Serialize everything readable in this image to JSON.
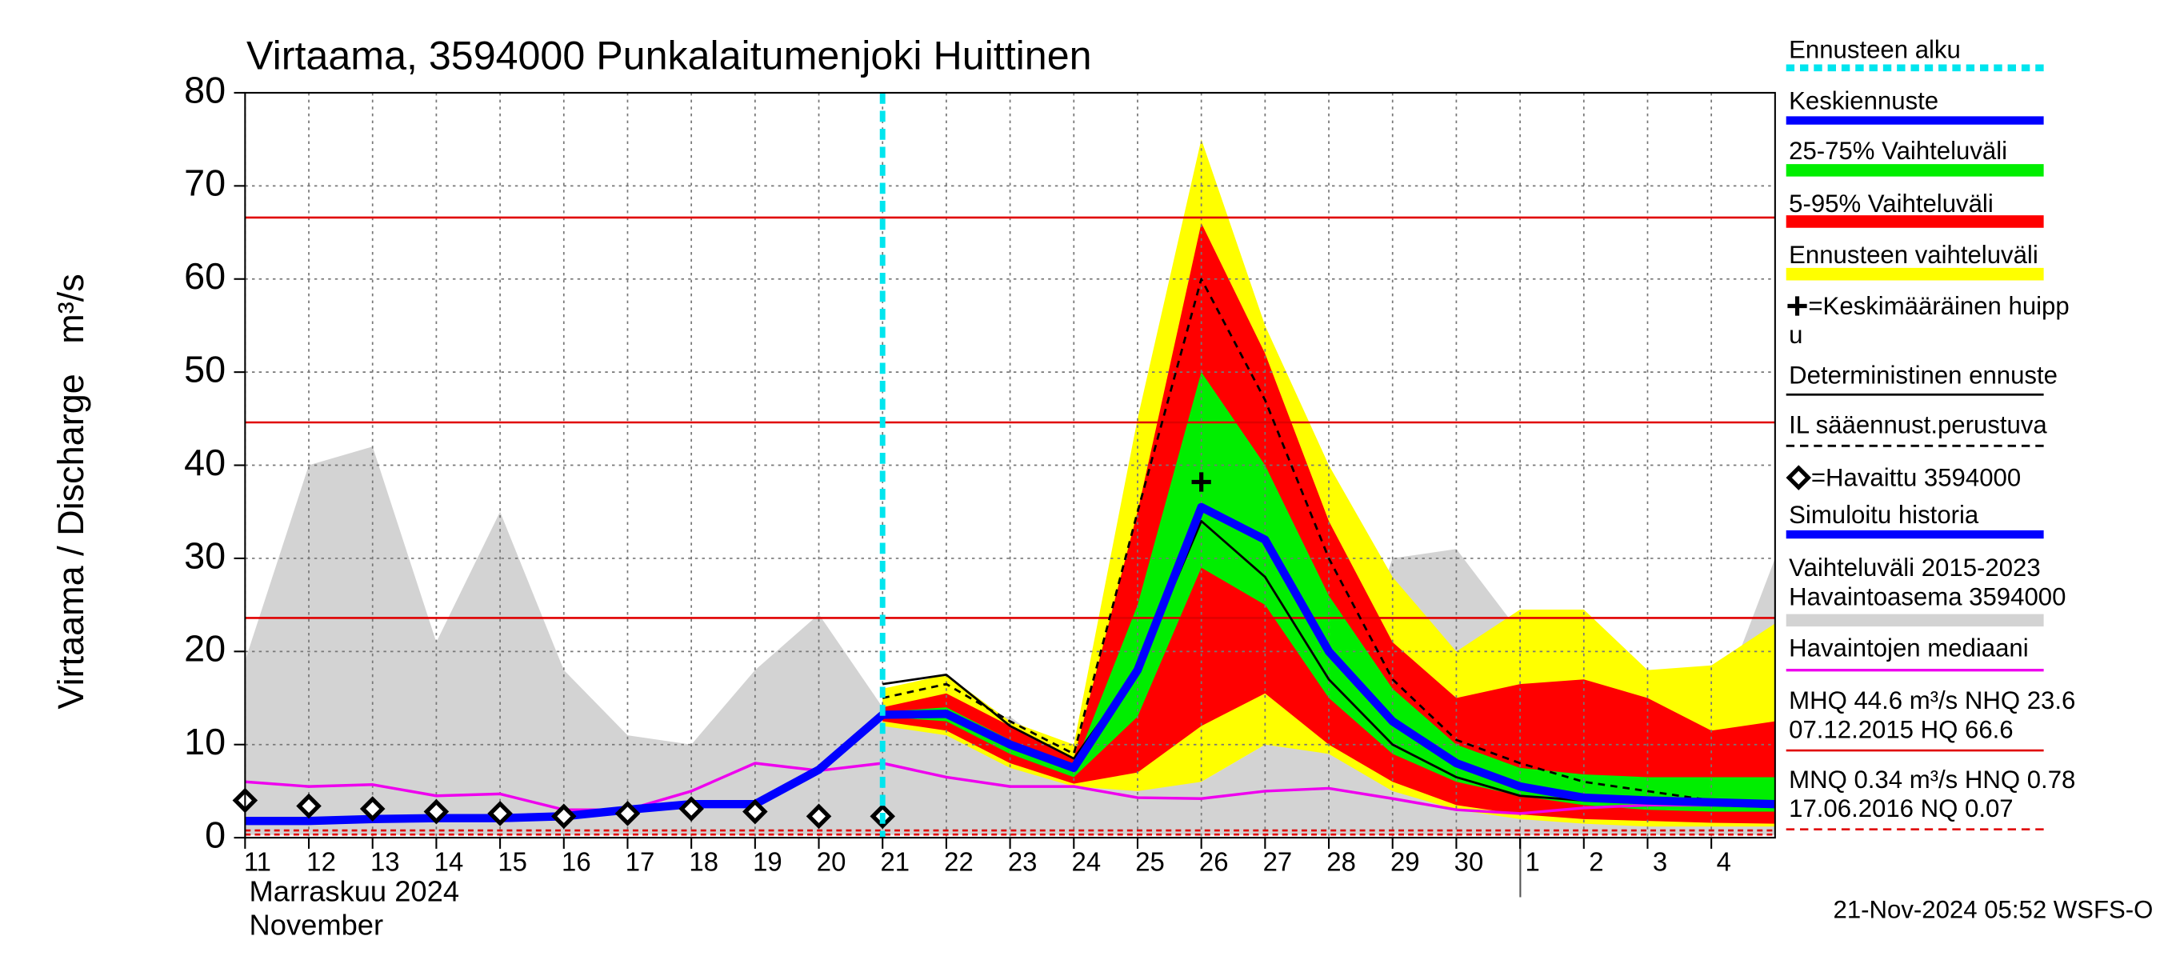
{
  "chart_data": {
    "type": "line",
    "title": "Virtaama, 3594000 Punkalaitumenjoki Huittinen",
    "y_label": "Virtaama / Discharge   m³/s",
    "x_label": "Marraskuu 2024",
    "x_label_2": "November",
    "footer": "21-Nov-2024 05:52 WSFS-O",
    "xlim": [
      0,
      24
    ],
    "xticks": [
      {
        "value": 0,
        "label": "11"
      },
      {
        "value": 1,
        "label": "12"
      },
      {
        "value": 2,
        "label": "13"
      },
      {
        "value": 3,
        "label": "14"
      },
      {
        "value": 4,
        "label": "15"
      },
      {
        "value": 5,
        "label": "16"
      },
      {
        "value": 6,
        "label": "17"
      },
      {
        "value": 7,
        "label": "18"
      },
      {
        "value": 8,
        "label": "19"
      },
      {
        "value": 9,
        "label": "20"
      },
      {
        "value": 10,
        "label": "21"
      },
      {
        "value": 11,
        "label": "22"
      },
      {
        "value": 12,
        "label": "23"
      },
      {
        "value": 13,
        "label": "24"
      },
      {
        "value": 14,
        "label": "25"
      },
      {
        "value": 15,
        "label": "26"
      },
      {
        "value": 16,
        "label": "27"
      },
      {
        "value": 17,
        "label": "28"
      },
      {
        "value": 18,
        "label": "29"
      },
      {
        "value": 19,
        "label": "30"
      },
      {
        "value": 20,
        "label": "1"
      },
      {
        "value": 21,
        "label": "2"
      },
      {
        "value": 22,
        "label": "3"
      },
      {
        "value": 23,
        "label": "4"
      }
    ],
    "ylim": [
      0,
      80
    ],
    "yticks": [
      0,
      10,
      20,
      30,
      40,
      50,
      60,
      70,
      80
    ],
    "grid": true,
    "forecast_start": {
      "name": "Ennusteen alku",
      "x": 10,
      "color": "#00e5ee"
    },
    "peak": {
      "name": "=Keskimääräinen huipp",
      "name_2": "u",
      "x": 15,
      "y": 38.2,
      "color": "#000000"
    },
    "ref_lines": [
      {
        "value": 66.6,
        "color": "#e00000",
        "dashed": false
      },
      {
        "value": 44.6,
        "color": "#e00000",
        "dashed": false
      },
      {
        "value": 23.6,
        "color": "#e00000",
        "dashed": false
      },
      {
        "value": 0.78,
        "color": "#e00000",
        "dashed": true
      },
      {
        "value": 0.34,
        "color": "#e00000",
        "dashed": true
      }
    ],
    "stats": [
      {
        "text": "MHQ 44.6 m³/s NHQ 23.6",
        "text_2": "07.12.2015 HQ 66.6",
        "color": "#e00000",
        "dashed": false
      },
      {
        "text": "MNQ 0.34 m³/s HNQ 0.78",
        "text_2": "17.06.2016 NQ 0.07",
        "color": "#e00000",
        "dashed": true
      }
    ],
    "series": [
      {
        "name": "Vaihteluväli 2015-2023",
        "name_2": " Havaintoasema 3594000",
        "kind": "band",
        "color": "#d3d3d3",
        "x": [
          0,
          1,
          2,
          3,
          4,
          5,
          6,
          7,
          8,
          9,
          10,
          11,
          12,
          13,
          14,
          15,
          16,
          17,
          18,
          19,
          20,
          21,
          22,
          23,
          24
        ],
        "upper": [
          19,
          40,
          42,
          21,
          35,
          18,
          11,
          10,
          18,
          24,
          14,
          13,
          13,
          8,
          7,
          6,
          10,
          10,
          30,
          31,
          22,
          21,
          18,
          12,
          30
        ],
        "lower": [
          0.3,
          0.3,
          0.3,
          0.3,
          0.3,
          0.3,
          0.3,
          0.3,
          0.3,
          0.3,
          0.3,
          0.3,
          0.3,
          0.3,
          0.3,
          0.3,
          0.3,
          0.3,
          0.3,
          0.3,
          0.3,
          0.3,
          0.3,
          0.3,
          0.3
        ]
      },
      {
        "name": "Ennusteen vaihteluväli",
        "kind": "band",
        "color": "#ffff00",
        "x": [
          10,
          11,
          12,
          13,
          14,
          15,
          16,
          17,
          18,
          19,
          20,
          21,
          22,
          23,
          24
        ],
        "upper": [
          16,
          17.5,
          12.5,
          10,
          45,
          75,
          55,
          40,
          28,
          20,
          24.5,
          24.5,
          18,
          18.5,
          23
        ],
        "lower": [
          12,
          11,
          7.5,
          5.5,
          5,
          6,
          10,
          9,
          5,
          3,
          2,
          1.5,
          1.2,
          1.2,
          1.2
        ]
      },
      {
        "name": "5-95% Vaihteluväli",
        "kind": "band",
        "color": "#ff0000",
        "x": [
          10,
          11,
          12,
          13,
          14,
          15,
          16,
          17,
          18,
          19,
          20,
          21,
          22,
          23,
          24
        ],
        "upper": [
          14,
          15.5,
          12,
          8.5,
          35,
          66,
          52,
          34,
          21,
          15,
          16.5,
          17,
          15,
          11.5,
          12.5
        ],
        "lower": [
          12.5,
          11.5,
          8,
          5.8,
          7,
          12,
          15.5,
          10,
          6,
          3.5,
          2.5,
          2,
          1.8,
          1.6,
          1.5
        ]
      },
      {
        "name": "25-75% Vaihteluväli",
        "kind": "band",
        "color": "#00ee00",
        "x": [
          10,
          11,
          12,
          13,
          14,
          15,
          16,
          17,
          18,
          19,
          20,
          21,
          22,
          23,
          24
        ],
        "upper": [
          13.5,
          14,
          10.5,
          7.5,
          25,
          50,
          40,
          26,
          16,
          10,
          7.5,
          6.8,
          6.5,
          6.5,
          6.5
        ],
        "lower": [
          13,
          12.5,
          9,
          6.5,
          13,
          29,
          25,
          15,
          9,
          6,
          4.5,
          3.5,
          3,
          2.8,
          2.8
        ]
      },
      {
        "name": "Havaintojen mediaani",
        "kind": "line",
        "color": "#ee00ee",
        "width": 2,
        "x": [
          0,
          1,
          2,
          3,
          4,
          5,
          6,
          7,
          8,
          9,
          10,
          11,
          12,
          13,
          14,
          15,
          16,
          17,
          18,
          19,
          20,
          21,
          22,
          23,
          24
        ],
        "values": [
          6,
          5.5,
          5.7,
          4.5,
          4.7,
          3,
          3,
          5,
          8,
          7.2,
          8,
          6.5,
          5.5,
          5.5,
          4.3,
          4.2,
          5,
          5.3,
          4.2,
          3,
          2.6,
          3.2,
          3.5,
          3.5,
          3.5
        ]
      },
      {
        "name": "Deterministinen ennuste",
        "kind": "line",
        "color": "#000000",
        "width": 1.6,
        "x": [
          10,
          11,
          12,
          13,
          14,
          15,
          16,
          17,
          18,
          19,
          20,
          21,
          22,
          23,
          24
        ],
        "values": [
          16.5,
          17.5,
          12,
          8.5,
          18,
          34,
          28,
          17,
          10,
          6.5,
          4.5,
          4,
          3.8,
          3.5,
          3.3
        ]
      },
      {
        "name": "IL sääennust.perustuva",
        "kind": "line",
        "color": "#000000",
        "width": 1.6,
        "dashed": true,
        "x": [
          10,
          11,
          12,
          13,
          14,
          15,
          16,
          17,
          18,
          19,
          20,
          21,
          22,
          23,
          24
        ],
        "values": [
          15,
          16.5,
          12.5,
          9,
          35,
          60,
          47,
          30,
          17,
          10.5,
          8,
          6,
          5,
          4,
          3.5
        ]
      },
      {
        "name": "Simuloitu historia",
        "kind": "line",
        "color": "#0000ff",
        "width": 6,
        "x": [
          0,
          1,
          2,
          3,
          4,
          5,
          6,
          7,
          8,
          9,
          10
        ],
        "values": [
          1.8,
          1.8,
          2,
          2.1,
          2.1,
          2.3,
          3,
          3.6,
          3.6,
          7.3,
          13.2
        ]
      },
      {
        "name": "Keskiennuste",
        "kind": "line",
        "color": "#0000ff",
        "width": 6,
        "x": [
          10,
          11,
          12,
          13,
          14,
          15,
          16,
          17,
          18,
          19,
          20,
          21,
          22,
          23,
          24
        ],
        "values": [
          13.2,
          13.3,
          10,
          7.5,
          18,
          35.5,
          32,
          20,
          12.5,
          8,
          5.5,
          4.3,
          4,
          3.8,
          3.6
        ]
      },
      {
        "name": "=Havaittu 3594000",
        "kind": "markers",
        "color": "#000000",
        "x": [
          0,
          1,
          2,
          3,
          4,
          5,
          6,
          7,
          8,
          9,
          10
        ],
        "values": [
          4,
          3.4,
          3.1,
          2.8,
          2.6,
          2.3,
          2.6,
          3.1,
          2.8,
          2.3,
          2.3
        ]
      }
    ]
  }
}
